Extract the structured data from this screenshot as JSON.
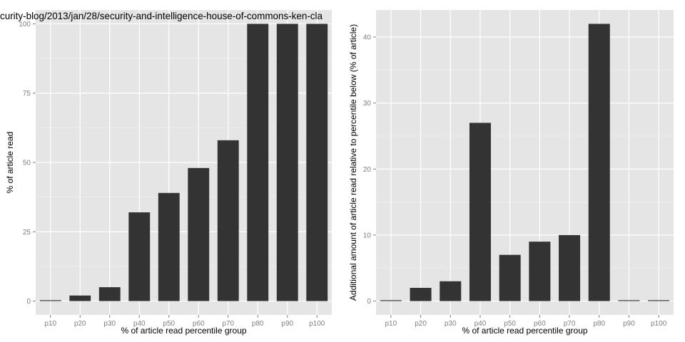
{
  "chart_data": [
    {
      "type": "bar",
      "title": "curity-blog/2013/jan/28/security-and-intelligence-house-of-commons-ken-cla",
      "xlabel": "% of article read percentile group",
      "ylabel": "% of article read",
      "categories": [
        "p10",
        "p20",
        "p30",
        "p40",
        "p50",
        "p60",
        "p70",
        "p80",
        "p90",
        "p100"
      ],
      "values": [
        0,
        2,
        5,
        32,
        39,
        48,
        58,
        100,
        100,
        100
      ],
      "ylim": [
        -5,
        105
      ],
      "yticks": [
        0,
        25,
        50,
        75,
        100
      ],
      "grid": true
    },
    {
      "type": "bar",
      "title": "",
      "xlabel": "% of article read percentile group",
      "ylabel": "Additional amount of article read relative to percentile below (% of article)",
      "categories": [
        "p10",
        "p20",
        "p30",
        "p40",
        "p50",
        "p60",
        "p70",
        "p80",
        "p90",
        "p100"
      ],
      "values": [
        0,
        2,
        3,
        27,
        7,
        9,
        10,
        42,
        0,
        0
      ],
      "ylim": [
        -2.1,
        44.1
      ],
      "yticks": [
        0,
        10,
        20,
        30,
        40
      ],
      "grid": true
    }
  ],
  "colors": {
    "panel": "#e5e5e5",
    "bar": "#333333",
    "grid": "#ffffff",
    "tick_text": "#7f7f7f"
  }
}
